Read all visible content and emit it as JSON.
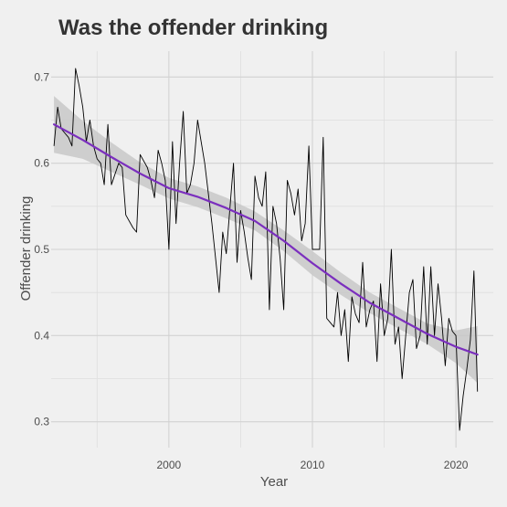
{
  "chart_data": {
    "type": "line",
    "title": "Was the offender drinking",
    "xlabel": "Year",
    "ylabel": "Offender drinking",
    "xlim": [
      1991.8,
      2022.6
    ],
    "ylim": [
      0.27,
      0.73
    ],
    "x_ticks": [
      2000,
      2010,
      2020
    ],
    "y_ticks": [
      0.3,
      0.4,
      0.5,
      0.6,
      0.7
    ],
    "grid": true,
    "legend": "none",
    "series": [
      {
        "kind": "observed",
        "color": "#000000",
        "points": [
          [
            1992.0,
            0.62
          ],
          [
            1992.25,
            0.665
          ],
          [
            1992.5,
            0.64
          ],
          [
            1992.75,
            0.635
          ],
          [
            1993.0,
            0.63
          ],
          [
            1993.25,
            0.62
          ],
          [
            1993.5,
            0.71
          ],
          [
            1993.75,
            0.69
          ],
          [
            1994.0,
            0.665
          ],
          [
            1994.25,
            0.625
          ],
          [
            1994.5,
            0.65
          ],
          [
            1994.75,
            0.62
          ],
          [
            1995.0,
            0.605
          ],
          [
            1995.25,
            0.6
          ],
          [
            1995.5,
            0.575
          ],
          [
            1995.75,
            0.645
          ],
          [
            1996.0,
            0.575
          ],
          [
            1996.5,
            0.6
          ],
          [
            1996.75,
            0.595
          ],
          [
            1997.0,
            0.54
          ],
          [
            1997.5,
            0.525
          ],
          [
            1997.75,
            0.52
          ],
          [
            1998.0,
            0.61
          ],
          [
            1998.5,
            0.595
          ],
          [
            1998.75,
            0.58
          ],
          [
            1999.0,
            0.56
          ],
          [
            1999.25,
            0.615
          ],
          [
            1999.5,
            0.6
          ],
          [
            1999.75,
            0.58
          ],
          [
            2000.0,
            0.5
          ],
          [
            2000.25,
            0.625
          ],
          [
            2000.5,
            0.53
          ],
          [
            2000.75,
            0.6
          ],
          [
            2001.0,
            0.66
          ],
          [
            2001.25,
            0.565
          ],
          [
            2001.5,
            0.575
          ],
          [
            2001.75,
            0.6
          ],
          [
            2002.0,
            0.65
          ],
          [
            2002.5,
            0.6
          ],
          [
            2003.0,
            0.53
          ],
          [
            2003.5,
            0.45
          ],
          [
            2003.75,
            0.52
          ],
          [
            2004.0,
            0.495
          ],
          [
            2004.5,
            0.6
          ],
          [
            2004.75,
            0.485
          ],
          [
            2005.0,
            0.545
          ],
          [
            2005.25,
            0.52
          ],
          [
            2005.5,
            0.49
          ],
          [
            2005.75,
            0.465
          ],
          [
            2006.0,
            0.585
          ],
          [
            2006.25,
            0.56
          ],
          [
            2006.5,
            0.55
          ],
          [
            2006.75,
            0.59
          ],
          [
            2007.0,
            0.43
          ],
          [
            2007.25,
            0.55
          ],
          [
            2007.5,
            0.53
          ],
          [
            2007.75,
            0.49
          ],
          [
            2008.0,
            0.43
          ],
          [
            2008.25,
            0.58
          ],
          [
            2008.5,
            0.565
          ],
          [
            2008.75,
            0.54
          ],
          [
            2009.0,
            0.57
          ],
          [
            2009.25,
            0.51
          ],
          [
            2009.5,
            0.53
          ],
          [
            2009.75,
            0.62
          ],
          [
            2010.0,
            0.5
          ],
          [
            2010.25,
            0.5
          ],
          [
            2010.5,
            0.5
          ],
          [
            2010.75,
            0.63
          ],
          [
            2011.0,
            0.42
          ],
          [
            2011.25,
            0.415
          ],
          [
            2011.5,
            0.41
          ],
          [
            2011.75,
            0.45
          ],
          [
            2012.0,
            0.4
          ],
          [
            2012.25,
            0.43
          ],
          [
            2012.5,
            0.37
          ],
          [
            2012.75,
            0.445
          ],
          [
            2013.0,
            0.425
          ],
          [
            2013.25,
            0.415
          ],
          [
            2013.5,
            0.485
          ],
          [
            2013.75,
            0.41
          ],
          [
            2014.0,
            0.43
          ],
          [
            2014.25,
            0.44
          ],
          [
            2014.5,
            0.37
          ],
          [
            2014.75,
            0.46
          ],
          [
            2015.0,
            0.4
          ],
          [
            2015.25,
            0.42
          ],
          [
            2015.5,
            0.5
          ],
          [
            2015.75,
            0.39
          ],
          [
            2016.0,
            0.41
          ],
          [
            2016.25,
            0.35
          ],
          [
            2016.75,
            0.45
          ],
          [
            2017.0,
            0.465
          ],
          [
            2017.25,
            0.385
          ],
          [
            2017.5,
            0.4
          ],
          [
            2017.75,
            0.48
          ],
          [
            2018.0,
            0.39
          ],
          [
            2018.25,
            0.48
          ],
          [
            2018.5,
            0.4
          ],
          [
            2018.75,
            0.46
          ],
          [
            2019.0,
            0.42
          ],
          [
            2019.25,
            0.365
          ],
          [
            2019.5,
            0.42
          ],
          [
            2019.75,
            0.405
          ],
          [
            2020.0,
            0.4
          ],
          [
            2020.25,
            0.29
          ],
          [
            2020.5,
            0.33
          ],
          [
            2020.75,
            0.36
          ],
          [
            2021.0,
            0.395
          ],
          [
            2021.25,
            0.475
          ],
          [
            2021.5,
            0.335
          ]
        ]
      },
      {
        "kind": "smooth",
        "color": "#7b2fbe",
        "band_color": "#c8c8c8",
        "points": [
          [
            1992.0,
            0.645
          ],
          [
            1994.0,
            0.627
          ],
          [
            1996.0,
            0.607
          ],
          [
            1998.0,
            0.588
          ],
          [
            2000.0,
            0.571
          ],
          [
            2002.0,
            0.561
          ],
          [
            2004.0,
            0.548
          ],
          [
            2006.0,
            0.533
          ],
          [
            2008.0,
            0.51
          ],
          [
            2010.0,
            0.484
          ],
          [
            2012.0,
            0.46
          ],
          [
            2014.0,
            0.438
          ],
          [
            2016.0,
            0.42
          ],
          [
            2018.0,
            0.402
          ],
          [
            2020.0,
            0.387
          ],
          [
            2021.5,
            0.378
          ]
        ],
        "band_lower": [
          0.612,
          0.605,
          0.59,
          0.575,
          0.559,
          0.549,
          0.536,
          0.522,
          0.498,
          0.47,
          0.447,
          0.426,
          0.408,
          0.39,
          0.368,
          0.345
        ],
        "band_upper": [
          0.678,
          0.649,
          0.624,
          0.601,
          0.583,
          0.573,
          0.56,
          0.544,
          0.522,
          0.498,
          0.473,
          0.45,
          0.432,
          0.414,
          0.406,
          0.411
        ]
      }
    ]
  }
}
